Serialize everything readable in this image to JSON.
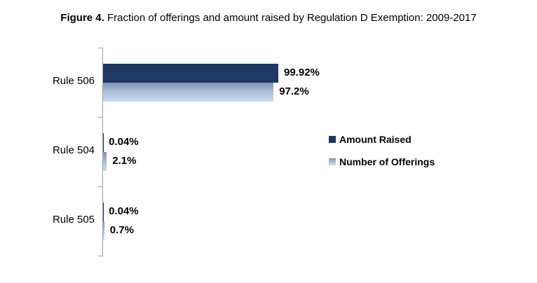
{
  "title": {
    "prefix": "Figure 4.",
    "rest": " Fraction of offerings and amount raised by Regulation D Exemption: 2009-2017"
  },
  "chart_data": {
    "type": "bar",
    "orientation": "horizontal",
    "title": "Figure 4. Fraction of offerings and amount raised by Regulation D Exemption: 2009-2017",
    "categories": [
      "Rule 506",
      "Rule 504",
      "Rule 505"
    ],
    "series": [
      {
        "name": "Amount Raised",
        "values": [
          99.92,
          0.04,
          0.04
        ],
        "value_labels": [
          "99.92%",
          "0.04%",
          "0.04%"
        ],
        "color": "#1F3864"
      },
      {
        "name": "Number of Offerings",
        "values": [
          97.2,
          2.1,
          0.7
        ],
        "value_labels": [
          "97.2%",
          "2.1%",
          "0.7%"
        ],
        "color_gradient": [
          "#8091AF",
          "#C9DDF1"
        ]
      }
    ],
    "xlim": [
      0,
      100
    ],
    "unit": "%",
    "grid": false,
    "legend_position": "center-right",
    "value_labels_shown": true
  },
  "colors": {
    "amount_raised": "#1F3864",
    "offerings_gradient_top": "#8091AF",
    "offerings_gradient_bottom": "#C9DDF1",
    "axis": "#A0A0A0",
    "text": "#000000",
    "background": "#FFFFFF"
  }
}
